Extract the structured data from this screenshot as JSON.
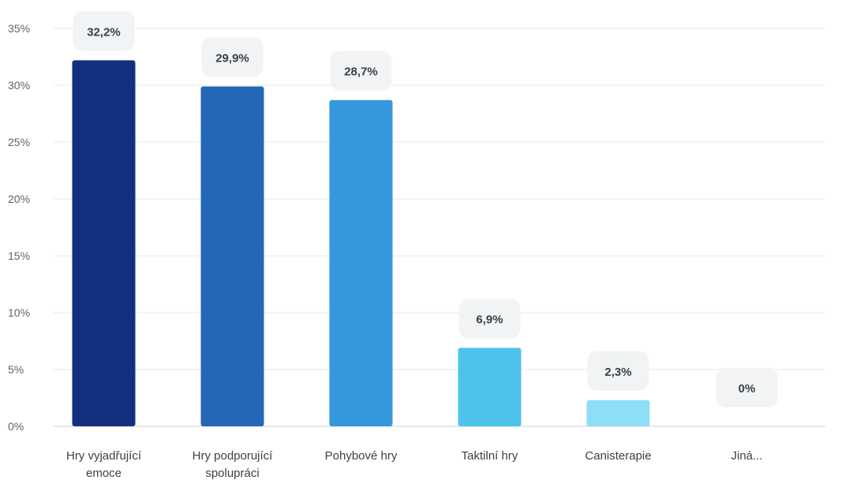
{
  "chart_data": {
    "type": "bar",
    "categories": [
      [
        "Hry vyjadřující",
        "emoce"
      ],
      [
        "Hry podporující",
        "spolupráci"
      ],
      [
        "Pohybové hry"
      ],
      [
        "Taktilní hry"
      ],
      [
        "Canisterapie"
      ],
      [
        "Jiná..."
      ]
    ],
    "values": [
      32.2,
      29.9,
      28.7,
      6.9,
      2.3,
      0
    ],
    "data_labels": [
      "32,2%",
      "29,9%",
      "28,7%",
      "6,9%",
      "2,3%",
      "0%"
    ],
    "colors": [
      "#13307f",
      "#2467b6",
      "#3597dc",
      "#4fc2ec",
      "#8edff5",
      "#c8f0fb"
    ],
    "ylim": [
      0,
      35
    ],
    "yticks": [
      0,
      5,
      10,
      15,
      20,
      25,
      30,
      35
    ],
    "ytick_labels": [
      "0%",
      "5%",
      "10%",
      "15%",
      "20%",
      "25%",
      "30%",
      "35%"
    ],
    "grid": true,
    "title": "",
    "xlabel": "",
    "ylabel": ""
  }
}
